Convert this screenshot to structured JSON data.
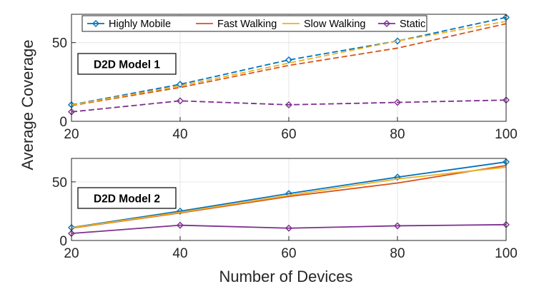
{
  "chart_data": [
    {
      "type": "line",
      "title": "",
      "annotation": "D2D Model 1",
      "line_style": "dashed",
      "xlabel": "",
      "ylabel": "Average Coverage",
      "xlim": [
        20,
        100
      ],
      "ylim": [
        0,
        68
      ],
      "xticks": [
        20,
        40,
        60,
        80,
        100
      ],
      "yticks": [
        0,
        50
      ],
      "x": [
        20,
        40,
        60,
        80,
        100
      ],
      "grid": true,
      "legend": "top",
      "series": [
        {
          "name": "Highly Mobile",
          "color": "#0072BD",
          "marker": "diamond",
          "values": [
            10.5,
            23.5,
            39,
            51,
            66
          ]
        },
        {
          "name": "Fast Walking",
          "color": "#D95319",
          "marker": "none",
          "values": [
            10,
            21.5,
            35.5,
            46.5,
            62
          ]
        },
        {
          "name": "Slow Walking",
          "color": "#EDB120",
          "marker": "none",
          "values": [
            10.3,
            22.5,
            37,
            51,
            63.5
          ]
        },
        {
          "name": "Static",
          "color": "#7E2F8E",
          "marker": "diamond",
          "values": [
            6,
            13,
            10.5,
            12,
            13.5
          ]
        }
      ]
    },
    {
      "type": "line",
      "title": "",
      "annotation": "D2D Model 2",
      "line_style": "solid",
      "xlabel": "Number of Devices",
      "ylabel": "Average Coverage",
      "xlim": [
        20,
        100
      ],
      "ylim": [
        0,
        70
      ],
      "xticks": [
        20,
        40,
        60,
        80,
        100
      ],
      "yticks": [
        0,
        50
      ],
      "x": [
        20,
        40,
        60,
        80,
        100
      ],
      "grid": true,
      "series": [
        {
          "name": "Highly Mobile",
          "color": "#0072BD",
          "marker": "diamond",
          "values": [
            11,
            25,
            40,
            54,
            67
          ]
        },
        {
          "name": "Fast Walking",
          "color": "#D95319",
          "marker": "none",
          "values": [
            10.5,
            23.5,
            37.5,
            49,
            64
          ]
        },
        {
          "name": "Slow Walking",
          "color": "#EDB120",
          "marker": "none",
          "values": [
            10.8,
            24,
            38.5,
            52.5,
            62.5
          ]
        },
        {
          "name": "Static",
          "color": "#7E2F8E",
          "marker": "diamond",
          "values": [
            6,
            13,
            10.5,
            12.5,
            13.5
          ]
        }
      ]
    }
  ]
}
